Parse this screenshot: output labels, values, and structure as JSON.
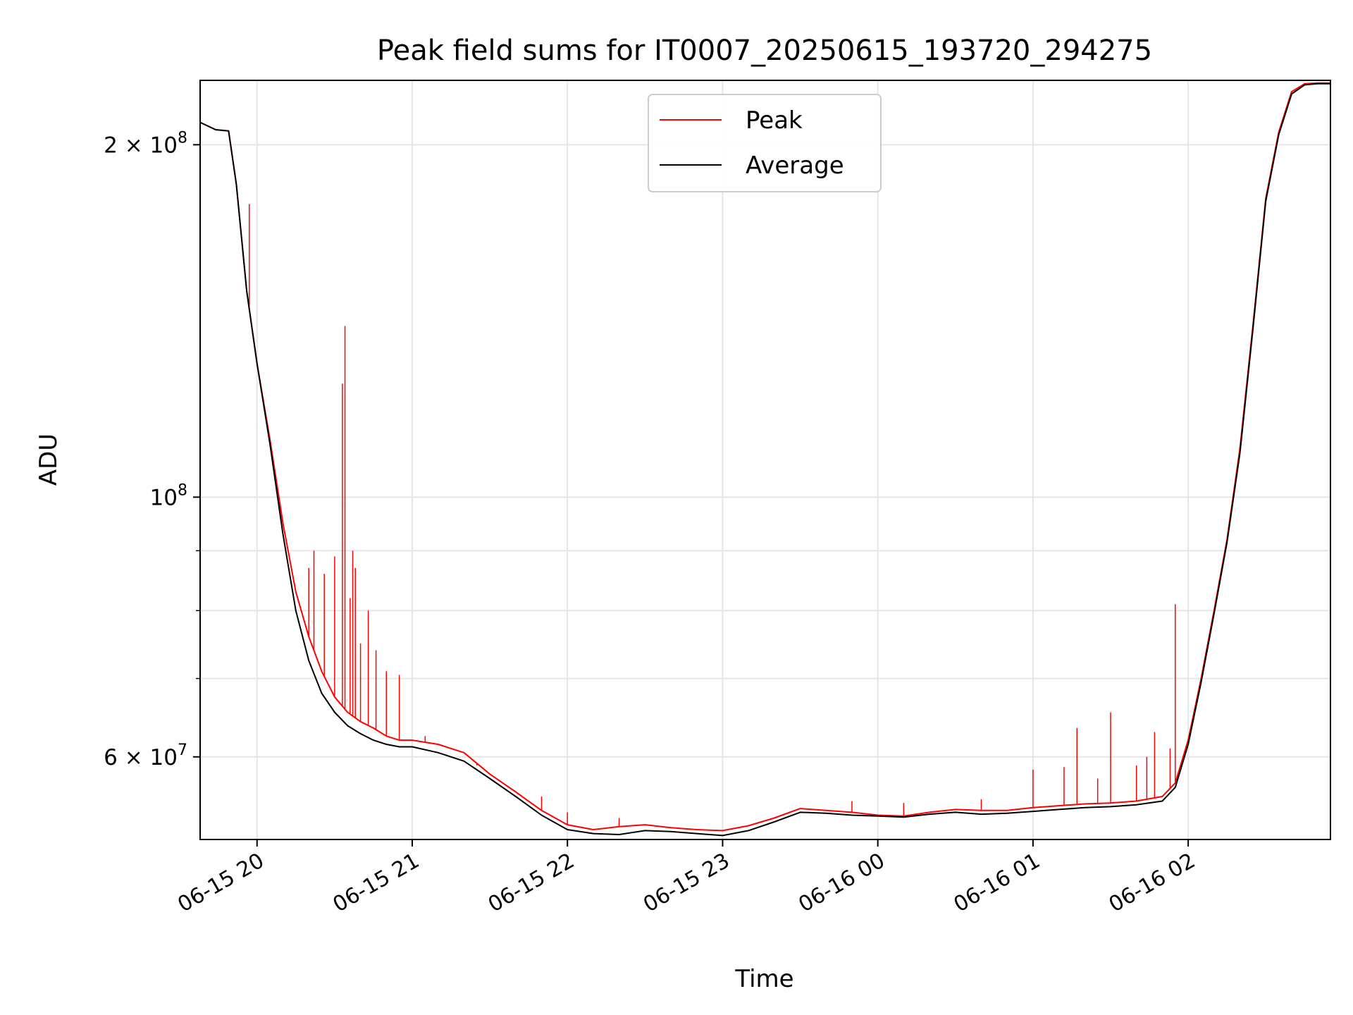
{
  "chart_data": {
    "type": "line",
    "title": "Peak field sums for IT0007_20250615_193720_294275",
    "xlabel": "Time",
    "ylabel": "ADU",
    "yscale": "log",
    "xlim": [
      "2025-06-15 19:38",
      "2025-06-16 02:55"
    ],
    "ylim": [
      51000000,
      227000000
    ],
    "grid": true,
    "legend_position": "top-center",
    "x_ticks": [
      {
        "label": "06-15 20",
        "value": "2025-06-15 20:00"
      },
      {
        "label": "06-15 21",
        "value": "2025-06-15 21:00"
      },
      {
        "label": "06-15 22",
        "value": "2025-06-15 22:00"
      },
      {
        "label": "06-15 23",
        "value": "2025-06-15 23:00"
      },
      {
        "label": "06-16 00",
        "value": "2025-06-16 00:00"
      },
      {
        "label": "06-16 01",
        "value": "2025-06-16 01:00"
      },
      {
        "label": "06-16 02",
        "value": "2025-06-16 02:00"
      }
    ],
    "y_ticks_major": [
      {
        "value": 60000000,
        "mantissa": "6",
        "exponent": "7"
      },
      {
        "value": 100000000,
        "mantissa": "",
        "exponent": "8"
      },
      {
        "value": 200000000,
        "mantissa": "2",
        "exponent": "8"
      }
    ],
    "y_ticks_minor": [
      70000000,
      80000000,
      90000000
    ],
    "series": [
      {
        "name": "Peak",
        "color": "#ff0000",
        "x": [
          "2025-06-15 19:38",
          "2025-06-15 19:44",
          "2025-06-15 19:49",
          "2025-06-15 19:52",
          "2025-06-15 19:56",
          "2025-06-15 20:00",
          "2025-06-15 20:05",
          "2025-06-15 20:10",
          "2025-06-15 20:15",
          "2025-06-15 20:20",
          "2025-06-15 20:25",
          "2025-06-15 20:30",
          "2025-06-15 20:35",
          "2025-06-15 20:40",
          "2025-06-15 20:45",
          "2025-06-15 20:50",
          "2025-06-15 20:55",
          "2025-06-15 21:00",
          "2025-06-15 21:10",
          "2025-06-15 21:20",
          "2025-06-15 21:30",
          "2025-06-15 21:40",
          "2025-06-15 21:50",
          "2025-06-15 22:00",
          "2025-06-15 22:10",
          "2025-06-15 22:20",
          "2025-06-15 22:30",
          "2025-06-15 22:40",
          "2025-06-15 22:50",
          "2025-06-15 23:00",
          "2025-06-15 23:10",
          "2025-06-15 23:20",
          "2025-06-15 23:30",
          "2025-06-15 23:40",
          "2025-06-15 23:50",
          "2025-06-16 00:00",
          "2025-06-16 00:10",
          "2025-06-16 00:20",
          "2025-06-16 00:30",
          "2025-06-16 00:40",
          "2025-06-16 00:50",
          "2025-06-16 01:00",
          "2025-06-16 01:10",
          "2025-06-16 01:20",
          "2025-06-16 01:30",
          "2025-06-16 01:40",
          "2025-06-16 01:50",
          "2025-06-16 01:55",
          "2025-06-16 02:00",
          "2025-06-16 02:05",
          "2025-06-16 02:10",
          "2025-06-16 02:15",
          "2025-06-16 02:20",
          "2025-06-16 02:25",
          "2025-06-16 02:30",
          "2025-06-16 02:35",
          "2025-06-16 02:40",
          "2025-06-16 02:45",
          "2025-06-16 02:50",
          "2025-06-16 02:55"
        ],
        "y": [
          209000000,
          206000000,
          205500000,
          185000000,
          150000000,
          130000000,
          112000000,
          95000000,
          83000000,
          76000000,
          71000000,
          67500000,
          65500000,
          64300000,
          63500000,
          62500000,
          62000000,
          62000000,
          61500000,
          60500000,
          58000000,
          56000000,
          54000000,
          52500000,
          52000000,
          52300000,
          52500000,
          52200000,
          52000000,
          51900000,
          52400000,
          53200000,
          54200000,
          54000000,
          53800000,
          53500000,
          53400000,
          53800000,
          54100000,
          54000000,
          54000000,
          54300000,
          54500000,
          54700000,
          54800000,
          55000000,
          55500000,
          57000000,
          62000000,
          70000000,
          80000000,
          92000000,
          110000000,
          140000000,
          180000000,
          205000000,
          222000000,
          225500000,
          225800000,
          225800000
        ],
        "spikes": [
          {
            "x": "2025-06-15 19:57",
            "y": 178000000
          },
          {
            "x": "2025-06-15 20:20",
            "y": 87000000
          },
          {
            "x": "2025-06-15 20:22",
            "y": 90000000
          },
          {
            "x": "2025-06-15 20:26",
            "y": 86000000
          },
          {
            "x": "2025-06-15 20:30",
            "y": 89000000
          },
          {
            "x": "2025-06-15 20:33",
            "y": 125000000
          },
          {
            "x": "2025-06-15 20:34",
            "y": 140000000
          },
          {
            "x": "2025-06-15 20:36",
            "y": 82000000
          },
          {
            "x": "2025-06-15 20:37",
            "y": 90000000
          },
          {
            "x": "2025-06-15 20:38",
            "y": 87000000
          },
          {
            "x": "2025-06-15 20:40",
            "y": 75000000
          },
          {
            "x": "2025-06-15 20:43",
            "y": 80000000
          },
          {
            "x": "2025-06-15 20:46",
            "y": 74000000
          },
          {
            "x": "2025-06-15 20:50",
            "y": 71000000
          },
          {
            "x": "2025-06-15 20:55",
            "y": 70500000
          },
          {
            "x": "2025-06-15 21:05",
            "y": 62500000
          },
          {
            "x": "2025-06-15 21:25",
            "y": 59000000
          },
          {
            "x": "2025-06-15 21:50",
            "y": 55500000
          },
          {
            "x": "2025-06-15 22:00",
            "y": 53800000
          },
          {
            "x": "2025-06-15 22:20",
            "y": 53200000
          },
          {
            "x": "2025-06-15 23:50",
            "y": 55000000
          },
          {
            "x": "2025-06-16 00:10",
            "y": 54800000
          },
          {
            "x": "2025-06-16 00:40",
            "y": 55200000
          },
          {
            "x": "2025-06-16 01:00",
            "y": 58500000
          },
          {
            "x": "2025-06-16 01:12",
            "y": 58800000
          },
          {
            "x": "2025-06-16 01:17",
            "y": 63500000
          },
          {
            "x": "2025-06-16 01:25",
            "y": 57500000
          },
          {
            "x": "2025-06-16 01:30",
            "y": 65500000
          },
          {
            "x": "2025-06-16 01:40",
            "y": 59000000
          },
          {
            "x": "2025-06-16 01:44",
            "y": 60000000
          },
          {
            "x": "2025-06-16 01:47",
            "y": 63000000
          },
          {
            "x": "2025-06-16 01:53",
            "y": 61000000
          },
          {
            "x": "2025-06-16 01:55",
            "y": 81000000
          }
        ]
      },
      {
        "name": "Average",
        "color": "#000000",
        "x": [
          "2025-06-15 19:38",
          "2025-06-15 19:44",
          "2025-06-15 19:49",
          "2025-06-15 19:52",
          "2025-06-15 19:56",
          "2025-06-15 20:00",
          "2025-06-15 20:05",
          "2025-06-15 20:10",
          "2025-06-15 20:15",
          "2025-06-15 20:20",
          "2025-06-15 20:25",
          "2025-06-15 20:30",
          "2025-06-15 20:35",
          "2025-06-15 20:40",
          "2025-06-15 20:45",
          "2025-06-15 20:50",
          "2025-06-15 20:55",
          "2025-06-15 21:00",
          "2025-06-15 21:10",
          "2025-06-15 21:20",
          "2025-06-15 21:30",
          "2025-06-15 21:40",
          "2025-06-15 21:50",
          "2025-06-15 22:00",
          "2025-06-15 22:10",
          "2025-06-15 22:20",
          "2025-06-15 22:30",
          "2025-06-15 22:40",
          "2025-06-15 22:50",
          "2025-06-15 23:00",
          "2025-06-15 23:10",
          "2025-06-15 23:20",
          "2025-06-15 23:30",
          "2025-06-15 23:40",
          "2025-06-15 23:50",
          "2025-06-16 00:00",
          "2025-06-16 00:10",
          "2025-06-16 00:20",
          "2025-06-16 00:30",
          "2025-06-16 00:40",
          "2025-06-16 00:50",
          "2025-06-16 01:00",
          "2025-06-16 01:10",
          "2025-06-16 01:20",
          "2025-06-16 01:30",
          "2025-06-16 01:40",
          "2025-06-16 01:50",
          "2025-06-16 01:55",
          "2025-06-16 02:00",
          "2025-06-16 02:05",
          "2025-06-16 02:10",
          "2025-06-16 02:15",
          "2025-06-16 02:20",
          "2025-06-16 02:25",
          "2025-06-16 02:30",
          "2025-06-16 02:35",
          "2025-06-16 02:40",
          "2025-06-16 02:45",
          "2025-06-16 02:50",
          "2025-06-16 02:55"
        ],
        "y": [
          209000000,
          206000000,
          205500000,
          185000000,
          150000000,
          130000000,
          111000000,
          93000000,
          80000000,
          72500000,
          68000000,
          65500000,
          63800000,
          62800000,
          62000000,
          61500000,
          61200000,
          61200000,
          60500000,
          59500000,
          57500000,
          55500000,
          53500000,
          52000000,
          51600000,
          51500000,
          51900000,
          51800000,
          51600000,
          51400000,
          51900000,
          52800000,
          53800000,
          53700000,
          53500000,
          53400000,
          53300000,
          53600000,
          53800000,
          53600000,
          53700000,
          53900000,
          54100000,
          54300000,
          54400000,
          54600000,
          55000000,
          56500000,
          61500000,
          69500000,
          79500000,
          91500000,
          109000000,
          139000000,
          179000000,
          204000000,
          221000000,
          225000000,
          225500000,
          225500000
        ]
      }
    ]
  }
}
